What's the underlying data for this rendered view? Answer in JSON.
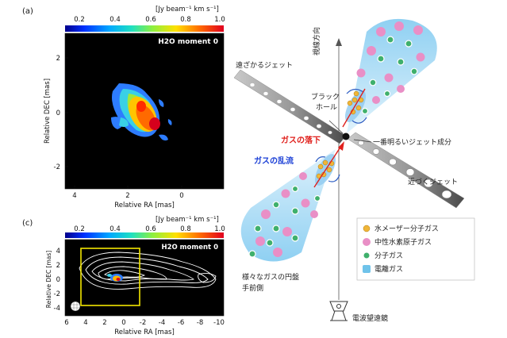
{
  "panel_a": {
    "letter": "(a)",
    "colorbar_unit": "[Jy beam⁻¹ km s⁻¹]",
    "colorbar_ticks": [
      "0.2",
      "0.4",
      "0.6",
      "0.8",
      "1.0"
    ],
    "title": "H2O moment 0",
    "ylabel": "Relative DEC [mas]",
    "xlabel": "Relative RA [mas]",
    "yticks": [
      "2",
      "0",
      "-2"
    ],
    "xticks": [
      "4",
      "2",
      "0"
    ]
  },
  "panel_c": {
    "letter": "(c)",
    "colorbar_unit": "[Jy beam⁻¹ km s⁻¹]",
    "colorbar_ticks": [
      "0.2",
      "0.4",
      "0.6",
      "0.8",
      "1.0"
    ],
    "title": "H2O moment 0",
    "ylabel": "Relative DEC [mas]",
    "xlabel": "Relative RA [mas]",
    "yticks": [
      "4",
      "2",
      "0",
      "-2",
      "-4"
    ],
    "xticks": [
      "6",
      "4",
      "2",
      "0",
      "-2",
      "-4",
      "-6",
      "-8",
      "-10"
    ]
  },
  "schematic": {
    "receding_jet": "遠ざかるジェット",
    "line_of_sight": "視線方向",
    "black_hole": [
      "ブラック",
      "ホール"
    ],
    "gas_infall": "ガスの落下",
    "gas_turbulence": "ガスの乱流",
    "brightest_component": "一番明るいジェット成分",
    "approaching_jet": "近づくジェット",
    "disk_caption": [
      "様々なガスの円盤",
      "手前側"
    ],
    "radio_telescope": "電波望遠鏡",
    "legend": [
      {
        "label": "水メーザー分子ガス",
        "color": "#f0b638"
      },
      {
        "label": "中性水素原子ガス",
        "color": "#e98fc6"
      },
      {
        "label": "分子ガス",
        "color": "#3fb06c"
      },
      {
        "label": "電離ガス",
        "color": "#6fc3ea"
      }
    ],
    "colors": {
      "infall": "#e0201c",
      "turbulence": "#1a3fd6"
    }
  }
}
